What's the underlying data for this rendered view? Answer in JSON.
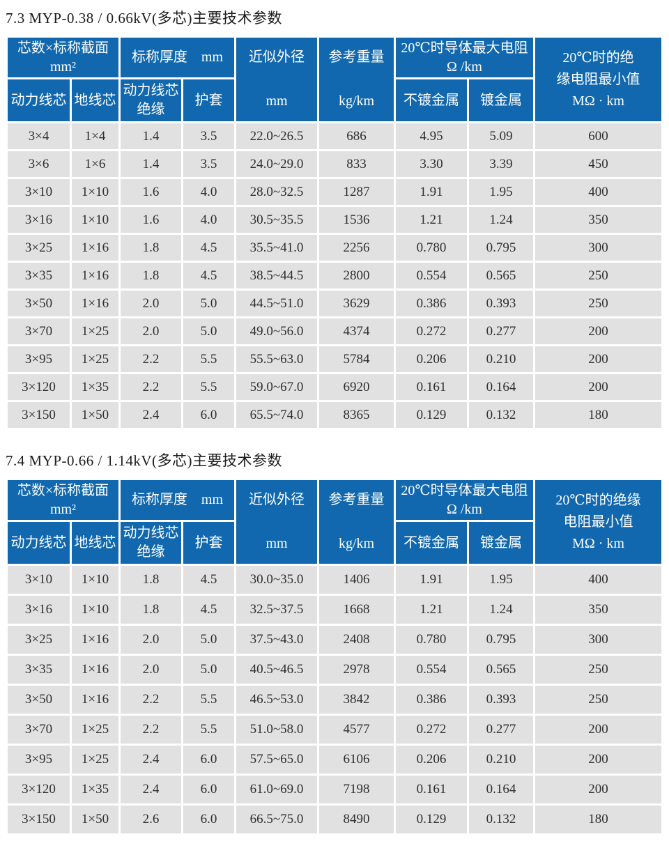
{
  "colors": {
    "header_bg": "#1168ae",
    "header_text": "#ffffff",
    "row_bg": "#e1e1e1",
    "page_bg": "#ffffff",
    "body_text": "#2f2f2f"
  },
  "tables": [
    {
      "title": "7.3 MYP-0.38 / 0.66kV(多芯)主要技术参数",
      "header": {
        "cores_line1": "芯数×标称截面",
        "cores_line2": "mm²",
        "thickness": "标称厚度　mm",
        "od_line1": "近似外径",
        "od_line2": "mm",
        "weight_line1": "参考重量",
        "weight_line2": "kg/km",
        "resistance_line1": "20℃时导体最大电阻",
        "resistance_line2": "Ω /km",
        "insulation_line1": "20℃时的绝",
        "insulation_line2": "缘电阻最小值",
        "insulation_line3": "MΩ · km",
        "sub_power_core": "动力线芯",
        "sub_ground_core": "地线芯",
        "sub_core_insulation_line1": "动力线芯",
        "sub_core_insulation_line2": "绝缘",
        "sub_sheath": "护套",
        "sub_bare_metal": "不镀金属",
        "sub_plated_metal": "镀金属"
      },
      "rows": [
        [
          "3×4",
          "1×4",
          "1.4",
          "3.5",
          "22.0~26.5",
          "686",
          "4.95",
          "5.09",
          "600"
        ],
        [
          "3×6",
          "1×6",
          "1.4",
          "3.5",
          "24.0~29.0",
          "833",
          "3.30",
          "3.39",
          "450"
        ],
        [
          "3×10",
          "1×10",
          "1.6",
          "4.0",
          "28.0~32.5",
          "1287",
          "1.91",
          "1.95",
          "400"
        ],
        [
          "3×16",
          "1×10",
          "1.6",
          "4.0",
          "30.5~35.5",
          "1536",
          "1.21",
          "1.24",
          "350"
        ],
        [
          "3×25",
          "1×16",
          "1.8",
          "4.5",
          "35.5~41.0",
          "2256",
          "0.780",
          "0.795",
          "300"
        ],
        [
          "3×35",
          "1×16",
          "1.8",
          "4.5",
          "38.5~44.5",
          "2800",
          "0.554",
          "0.565",
          "250"
        ],
        [
          "3×50",
          "1×16",
          "2.0",
          "5.0",
          "44.5~51.0",
          "3629",
          "0.386",
          "0.393",
          "250"
        ],
        [
          "3×70",
          "1×25",
          "2.0",
          "5.0",
          "49.0~56.0",
          "4374",
          "0.272",
          "0.277",
          "200"
        ],
        [
          "3×95",
          "1×25",
          "2.2",
          "5.5",
          "55.5~63.0",
          "5784",
          "0.206",
          "0.210",
          "200"
        ],
        [
          "3×120",
          "1×35",
          "2.2",
          "5.5",
          "59.0~67.0",
          "6920",
          "0.161",
          "0.164",
          "200"
        ],
        [
          "3×150",
          "1×50",
          "2.4",
          "6.0",
          "65.5~74.0",
          "8365",
          "0.129",
          "0.132",
          "180"
        ]
      ]
    },
    {
      "title": "7.4 MYP-0.66 / 1.14kV(多芯)主要技术参数",
      "header": {
        "cores_line1": "芯数×标称截面",
        "cores_line2": "mm²",
        "thickness": "标称厚度　mm",
        "od_line1": "近似外径",
        "od_line2": "mm",
        "weight_line1": "参考重量",
        "weight_line2": "kg/km",
        "resistance_line1": "20℃时导体最大电阻",
        "resistance_line2": "Ω /km",
        "insulation_line1": "20℃时的绝缘",
        "insulation_line2": "电阻最小值",
        "insulation_line3": "MΩ · km",
        "sub_power_core": "动力线芯",
        "sub_ground_core": "地线芯",
        "sub_core_insulation_line1": "动力线芯",
        "sub_core_insulation_line2": "绝缘",
        "sub_sheath": "护套",
        "sub_bare_metal": "不镀金属",
        "sub_plated_metal": "镀金属"
      },
      "rows": [
        [
          "3×10",
          "1×10",
          "1.8",
          "4.5",
          "30.0~35.0",
          "1406",
          "1.91",
          "1.95",
          "400"
        ],
        [
          "3×16",
          "1×10",
          "1.8",
          "4.5",
          "32.5~37.5",
          "1668",
          "1.21",
          "1.24",
          "350"
        ],
        [
          "3×25",
          "1×16",
          "2.0",
          "5.0",
          "37.5~43.0",
          "2408",
          "0.780",
          "0.795",
          "300"
        ],
        [
          "3×35",
          "1×16",
          "2.0",
          "5.0",
          "40.5~46.5",
          "2978",
          "0.554",
          "0.565",
          "250"
        ],
        [
          "3×50",
          "1×16",
          "2.2",
          "5.5",
          "46.5~53.0",
          "3842",
          "0.386",
          "0.393",
          "250"
        ],
        [
          "3×70",
          "1×25",
          "2.2",
          "5.5",
          "51.0~58.0",
          "4577",
          "0.272",
          "0.277",
          "200"
        ],
        [
          "3×95",
          "1×25",
          "2.4",
          "6.0",
          "57.5~65.0",
          "6106",
          "0.206",
          "0.210",
          "200"
        ],
        [
          "3×120",
          "1×35",
          "2.4",
          "6.0",
          "61.0~69.0",
          "7198",
          "0.161",
          "0.164",
          "200"
        ],
        [
          "3×150",
          "1×50",
          "2.6",
          "6.0",
          "66.5~75.0",
          "8490",
          "0.129",
          "0.132",
          "180"
        ]
      ]
    }
  ]
}
